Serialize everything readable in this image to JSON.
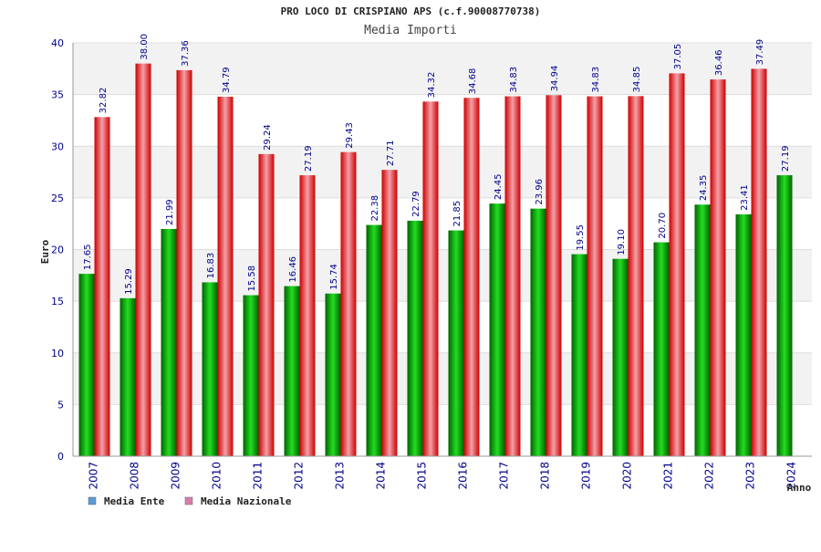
{
  "chart_data": {
    "type": "bar",
    "title": "PRO LOCO DI CRISPIANO APS (c.f.90008770738)",
    "subtitle": "Media Importi",
    "ylabel": "Euro",
    "xlabel": "Anno",
    "ylim": [
      0,
      40
    ],
    "yticks": [
      0,
      5,
      10,
      15,
      20,
      25,
      30,
      35,
      40
    ],
    "grid": true,
    "legend_position": "bottom-left",
    "categories": [
      "2007",
      "2008",
      "2009",
      "2010",
      "2011",
      "2012",
      "2013",
      "2014",
      "2015",
      "2016",
      "2017",
      "2018",
      "2019",
      "2020",
      "2021",
      "2022",
      "2023",
      "2024"
    ],
    "series": [
      {
        "name": "Media Ente",
        "legend_color": "#5b9bd5",
        "color": "#11aa11",
        "values": [
          17.65,
          15.29,
          21.99,
          16.83,
          15.58,
          16.46,
          15.74,
          22.38,
          22.79,
          21.85,
          24.45,
          23.96,
          19.55,
          19.1,
          20.7,
          24.35,
          23.41,
          27.19
        ],
        "labels": [
          "17.65",
          "15.29",
          "21.99",
          "16.83",
          "15.58",
          "16.46",
          "15.74",
          "22.38",
          "22.79",
          "21.85",
          "24.45",
          "23.96",
          "19.55",
          "19.10",
          "20.70",
          "24.35",
          "23.41",
          "27.19"
        ]
      },
      {
        "name": "Media Nazionale",
        "legend_color": "#d67fa8",
        "color": "#e8202a",
        "values": [
          32.82,
          38.0,
          37.36,
          34.79,
          29.24,
          27.19,
          29.43,
          27.71,
          34.32,
          34.68,
          34.83,
          34.94,
          34.83,
          34.85,
          37.05,
          36.46,
          37.49,
          null
        ],
        "labels": [
          "32.82",
          "38.00",
          "37.36",
          "34.79",
          "29.24",
          "27.19",
          "29.43",
          "27.71",
          "34.32",
          "34.68",
          "34.83",
          "34.94",
          "34.83",
          "34.85",
          "37.05",
          "36.46",
          "37.49",
          null
        ]
      }
    ]
  }
}
